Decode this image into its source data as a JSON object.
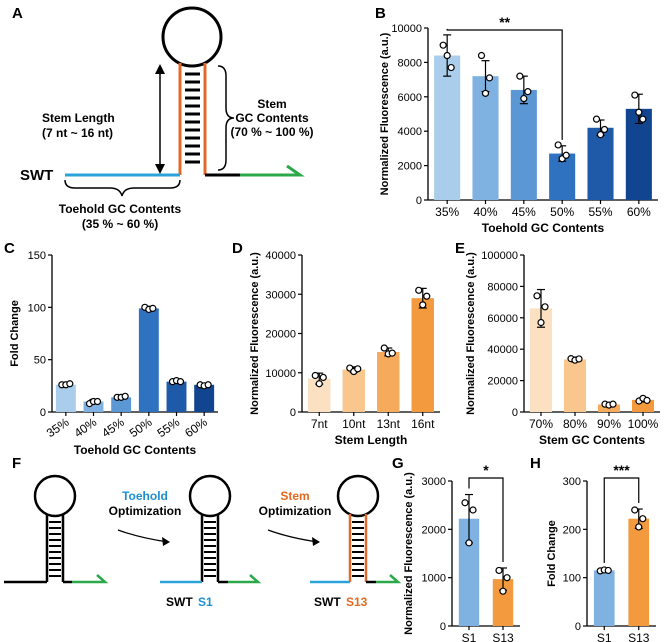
{
  "colors": {
    "blue_lightest": "#a9cdea",
    "blue_light": "#7fb2e0",
    "blue_mid": "#5a97d4",
    "blue": "#2f72bf",
    "blue_dark": "#1f5aa8",
    "blue_darkest": "#124590",
    "orange_lightest": "#fbe0c2",
    "orange_light": "#f9c68e",
    "orange_mid": "#f6ab5c",
    "orange": "#f39a3e",
    "toehold_line": "#2ba3d8",
    "stem_line": "#e06a2c",
    "tail_line": "#2aa84a",
    "s1_text": "#1e8fd0",
    "s13_text": "#e36a1e"
  },
  "panel_A": {
    "label": "A",
    "swt_label": "SWT",
    "stem_length_text": [
      "Stem Length",
      "(7 nt ~ 16 nt)"
    ],
    "stem_gc_text": [
      "Stem",
      "GC Contents",
      "(70 % ~ 100 %)"
    ],
    "toehold_gc_text": [
      "Toehold GC Contents",
      "(35 % ~ 60 %)"
    ]
  },
  "panel_F": {
    "label": "F",
    "step1": [
      "Toehold",
      "Optimization"
    ],
    "step2": [
      "Stem",
      "Optimization"
    ],
    "swt_label": "SWT",
    "s1_label": "S1",
    "s13_label": "S13"
  },
  "chart_data": [
    {
      "panel": "B",
      "type": "bar",
      "categories": [
        "35%",
        "40%",
        "45%",
        "50%",
        "55%",
        "60%"
      ],
      "values": [
        8400,
        7200,
        6400,
        2700,
        4200,
        5300
      ],
      "errors": [
        1200,
        900,
        800,
        450,
        450,
        850
      ],
      "points": [
        [
          9000,
          8400,
          7700
        ],
        [
          8400,
          6200,
          7100
        ],
        [
          7200,
          5900,
          6300
        ],
        [
          3200,
          2400,
          2600
        ],
        [
          4700,
          3800,
          4100
        ],
        [
          6100,
          5100,
          4700
        ]
      ],
      "xlabel": "Toehold GC Contents",
      "ylabel": "Normalized Fluorescence (a.u.)",
      "ylim": [
        0,
        10000
      ],
      "yticks": [
        "0",
        "2000",
        "4000",
        "6000",
        "8000",
        "10000"
      ],
      "significance": "**"
    },
    {
      "panel": "C",
      "type": "bar",
      "categories": [
        "35%",
        "40%",
        "45%",
        "50%",
        "55%",
        "60%"
      ],
      "values": [
        26,
        10,
        14,
        99,
        29,
        26
      ],
      "errors": [
        1,
        2,
        1,
        2,
        1.5,
        1
      ],
      "points": [
        [
          26,
          26,
          27
        ],
        [
          8,
          10,
          10
        ],
        [
          14,
          14,
          15
        ],
        [
          100,
          98,
          99
        ],
        [
          29,
          30,
          29
        ],
        [
          26,
          25,
          26
        ]
      ],
      "xlabel": "Toehold GC Contents",
      "ylabel": "Fold Change",
      "ylim": [
        0,
        150
      ],
      "yticks": [
        "0",
        "50",
        "100",
        "150"
      ]
    },
    {
      "panel": "D",
      "type": "bar",
      "categories": [
        "7nt",
        "10nt",
        "13nt",
        "16nt"
      ],
      "values": [
        8500,
        10800,
        15300,
        29000
      ],
      "errors": [
        1400,
        700,
        1000,
        2500
      ],
      "points": [
        [
          9300,
          7200,
          8800
        ],
        [
          11200,
          10300,
          11000
        ],
        [
          16300,
          14800,
          15000
        ],
        [
          31000,
          27300,
          29500
        ]
      ],
      "xlabel": "Stem Length",
      "ylabel": "Normalized Fluorescence (a.u.)",
      "ylim": [
        0,
        40000
      ],
      "yticks": [
        "0",
        "10000",
        "20000",
        "30000",
        "40000"
      ]
    },
    {
      "panel": "E",
      "type": "bar",
      "categories": [
        "70%",
        "80%",
        "90%",
        "100%"
      ],
      "values": [
        66000,
        33500,
        4800,
        7700
      ],
      "errors": [
        12000,
        1500,
        900,
        1300
      ],
      "points": [
        [
          74000,
          57000,
          67000
        ],
        [
          34000,
          33000,
          33800
        ],
        [
          5000,
          4400,
          5000
        ],
        [
          7000,
          8700,
          7400
        ]
      ],
      "xlabel": "Stem GC Contents",
      "ylabel": "Normalized Fluorescence (a.u.)",
      "ylim": [
        0,
        100000
      ],
      "yticks": [
        "0",
        "20000",
        "40000",
        "60000",
        "80000",
        "100000"
      ]
    },
    {
      "panel": "G",
      "type": "bar",
      "categories": [
        "S1",
        "S13"
      ],
      "values": [
        2220,
        970
      ],
      "errors": [
        500,
        230
      ],
      "points": [
        [
          2550,
          1720,
          2400
        ],
        [
          1150,
          720,
          1000
        ]
      ],
      "xlabel": "",
      "ylabel": "Normalized Fluorescence (a.u.)",
      "ylim": [
        0,
        3000
      ],
      "yticks": [
        "0",
        "1000",
        "2000",
        "3000"
      ],
      "significance": "*"
    },
    {
      "panel": "H",
      "type": "bar",
      "categories": [
        "S1",
        "S13"
      ],
      "values": [
        115,
        222
      ],
      "errors": [
        3,
        20
      ],
      "points": [
        [
          114,
          116,
          115
        ],
        [
          240,
          205,
          222
        ]
      ],
      "xlabel": "",
      "ylabel": "Fold Change",
      "ylim": [
        0,
        300
      ],
      "yticks": [
        "0",
        "100",
        "200",
        "300"
      ],
      "significance": "***"
    }
  ]
}
